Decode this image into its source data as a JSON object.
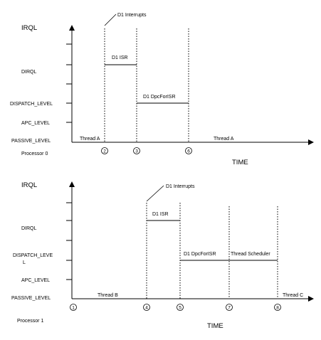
{
  "panels": [
    {
      "axis_title": "IRQL",
      "time_label": "TIME",
      "processor_label": "Processor 0",
      "levels": [
        "DIRQL",
        "DISPATCH_LEVEL",
        "APC_LEVEL",
        "PASSIVE_LEVEL"
      ],
      "interrupt_label": "D1 Interrupts",
      "segments": [
        {
          "label": "Thread A"
        },
        {
          "label": "D1 ISR"
        },
        {
          "label": "D1 DpcForISR"
        },
        {
          "label": "Thread A"
        }
      ],
      "markers": [
        "2",
        "3",
        "6"
      ]
    },
    {
      "axis_title": "IRQL",
      "time_label": "TIME",
      "processor_label": "Processor 1",
      "levels": [
        "DIRQL",
        "DISPATCH_LEVE",
        "L",
        "APC_LEVEL",
        "PASSIVE_LEVEL"
      ],
      "interrupt_label": "D1 Interrupts",
      "segments": [
        {
          "label": "Thread B"
        },
        {
          "label": "D1 ISR"
        },
        {
          "label": "D1 DpcForISR"
        },
        {
          "label": "Thread Scheduler"
        },
        {
          "label": "Thread C"
        }
      ],
      "markers": [
        "1",
        "4",
        "5",
        "7",
        "8"
      ]
    }
  ]
}
